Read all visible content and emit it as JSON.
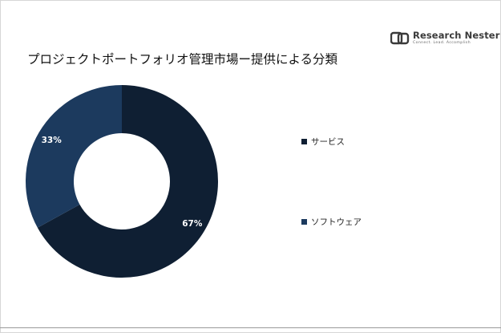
{
  "brand": {
    "name": "Research Nester",
    "tagline": "Connect. Lead. Accomplish"
  },
  "chart_data": {
    "type": "pie",
    "title": "プロジェクトポートフォリオ管理市場ー提供による分類",
    "categories": [
      "サービス",
      "ソフトウェア"
    ],
    "values": [
      67,
      33
    ],
    "value_labels": [
      "67%",
      "33%"
    ],
    "colors": [
      "#0f1f33",
      "#1c3a5e"
    ],
    "donut": true,
    "legend_position": "right"
  }
}
